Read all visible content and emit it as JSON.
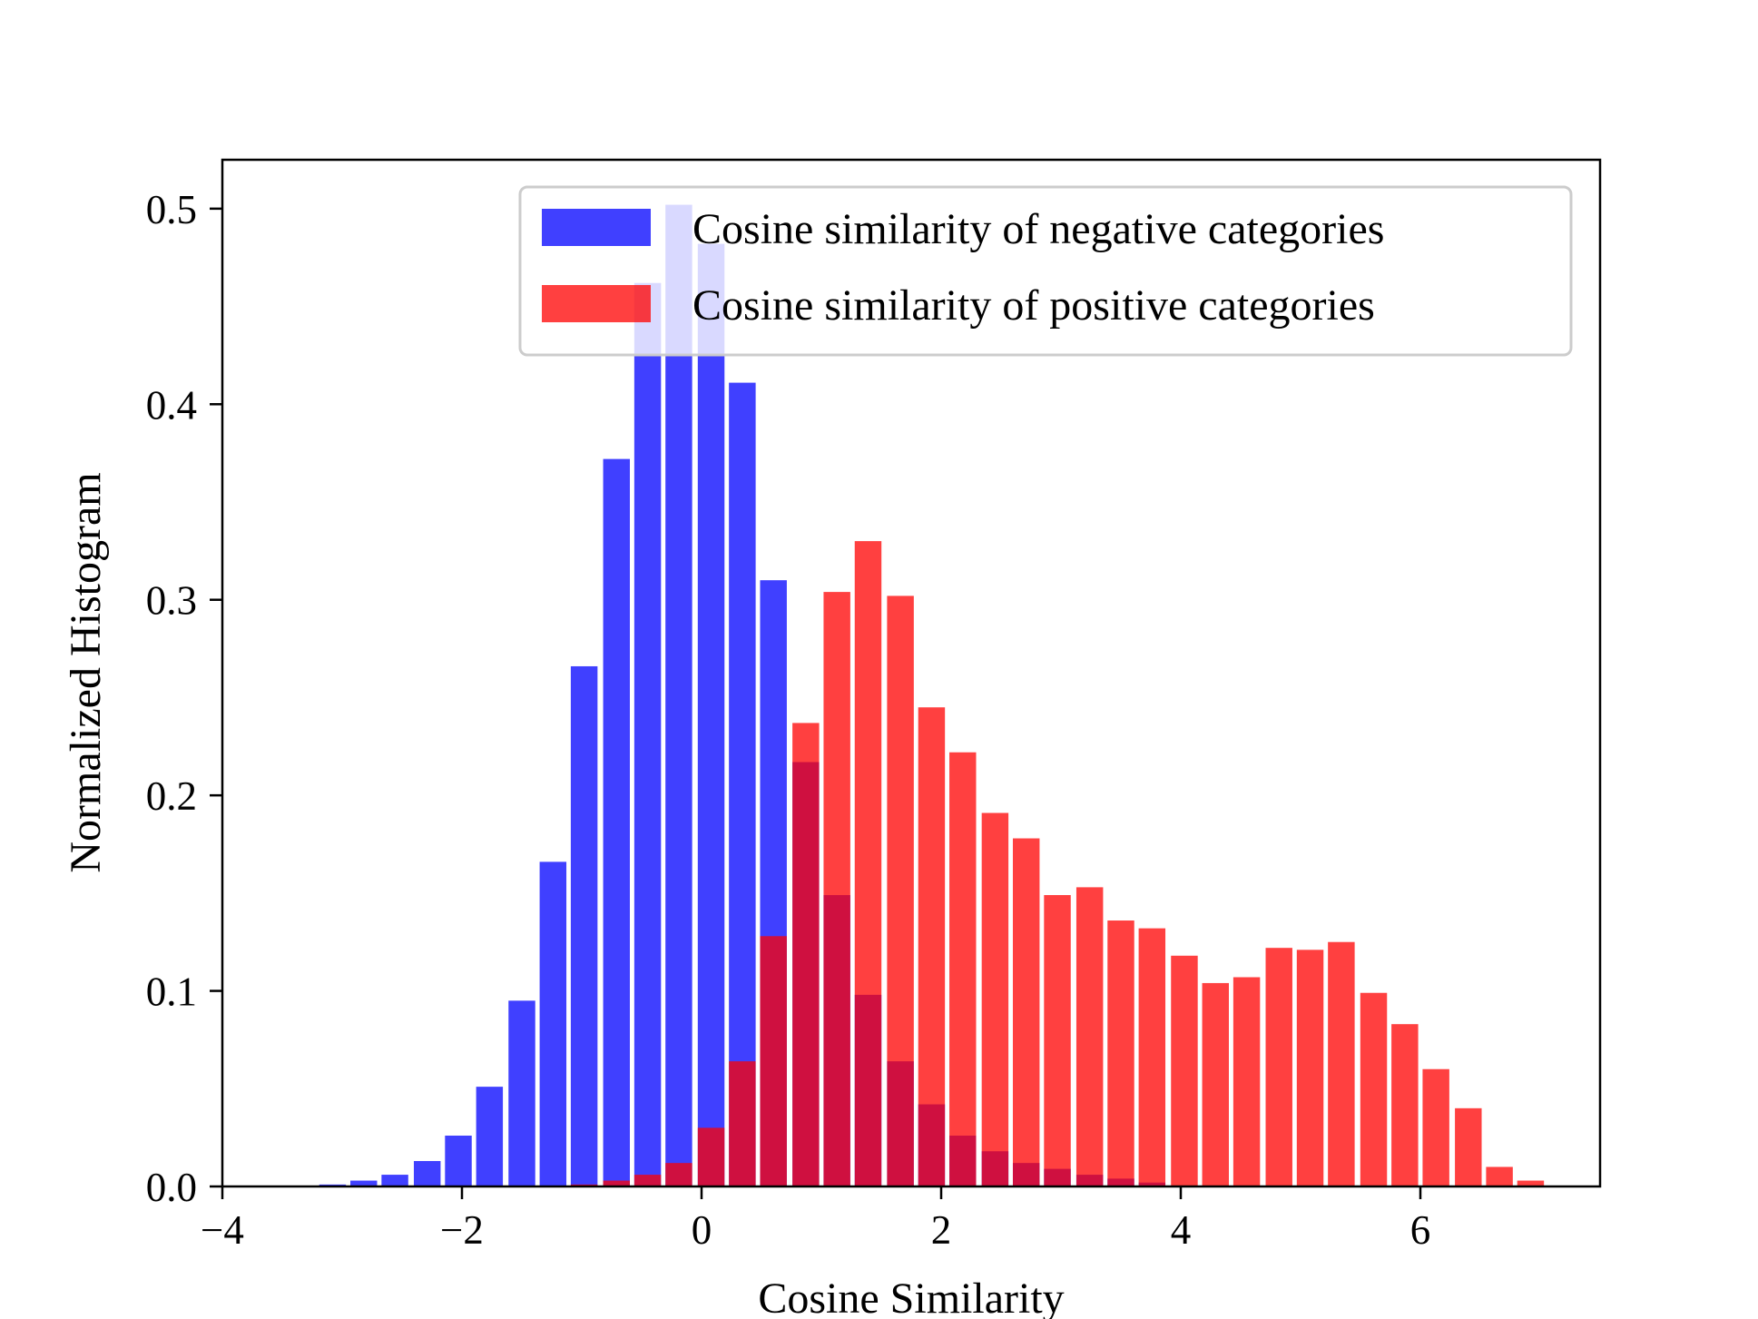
{
  "chart_data": {
    "type": "bar",
    "title": "",
    "xlabel": "Cosine Similarity",
    "ylabel": "Normalized Histogram",
    "xlim": [
      -4,
      7.5
    ],
    "ylim": [
      0,
      0.525
    ],
    "xticks": [
      -4,
      -2,
      0,
      2,
      4,
      6
    ],
    "xtick_labels": [
      "−4",
      "−2",
      "0",
      "2",
      "4",
      "6"
    ],
    "yticks": [
      0.0,
      0.1,
      0.2,
      0.3,
      0.4,
      0.5
    ],
    "ytick_labels": [
      "0.0",
      "0.1",
      "0.2",
      "0.3",
      "0.4",
      "0.5"
    ],
    "grid": false,
    "legend_position": "top-right",
    "bin_width": 0.2625,
    "bar_width_fraction": 0.85,
    "series": [
      {
        "name": "Cosine similarity of negative categories",
        "color": "#0000ff",
        "opacity": 0.75,
        "x": [
          -3.08,
          -2.82,
          -2.56,
          -2.29,
          -2.03,
          -1.77,
          -1.5,
          -1.24,
          -0.98,
          -0.71,
          -0.45,
          -0.19,
          0.08,
          0.34,
          0.6,
          0.87,
          1.13,
          1.39,
          1.66,
          1.92,
          2.18,
          2.45,
          2.71,
          2.97,
          3.24,
          3.5,
          3.76
        ],
        "values": [
          0.001,
          0.003,
          0.006,
          0.013,
          0.026,
          0.051,
          0.095,
          0.166,
          0.266,
          0.372,
          0.462,
          0.502,
          0.482,
          0.411,
          0.31,
          0.217,
          0.149,
          0.098,
          0.064,
          0.042,
          0.026,
          0.018,
          0.012,
          0.009,
          0.006,
          0.004,
          0.002
        ]
      },
      {
        "name": "Cosine similarity of positive categories",
        "color": "#ff0000",
        "opacity": 0.75,
        "x": [
          -0.98,
          -0.71,
          -0.45,
          -0.19,
          0.08,
          0.34,
          0.6,
          0.87,
          1.13,
          1.39,
          1.66,
          1.92,
          2.18,
          2.45,
          2.71,
          2.97,
          3.24,
          3.5,
          3.76,
          4.03,
          4.29,
          4.55,
          4.82,
          5.08,
          5.34,
          5.61,
          5.87,
          6.13,
          6.4,
          6.66,
          6.92
        ],
        "values": [
          0.001,
          0.003,
          0.006,
          0.012,
          0.03,
          0.064,
          0.128,
          0.237,
          0.304,
          0.33,
          0.302,
          0.245,
          0.222,
          0.191,
          0.178,
          0.149,
          0.153,
          0.136,
          0.132,
          0.118,
          0.104,
          0.107,
          0.122,
          0.121,
          0.125,
          0.099,
          0.083,
          0.06,
          0.04,
          0.01,
          0.003
        ]
      }
    ]
  }
}
